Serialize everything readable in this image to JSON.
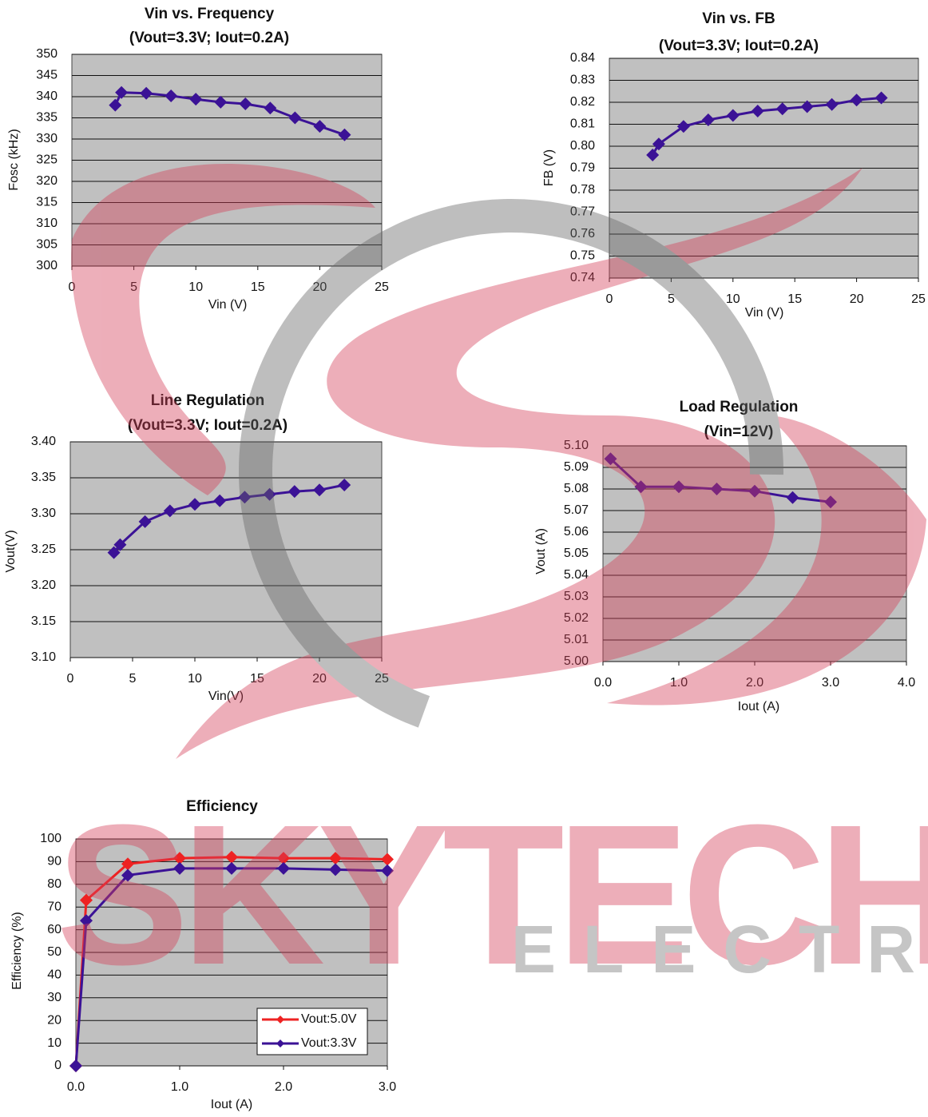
{
  "chart_data": [
    {
      "type": "line",
      "title": "Vin vs. Frequency",
      "subtitle": "(Vout=3.3V; Iout=0.2A)",
      "x_label": "Vin (V)",
      "y_label": "Fosc (kHz)",
      "x": [
        3.5,
        4,
        6,
        8,
        10,
        12,
        14,
        16,
        18,
        20,
        22
      ],
      "values": [
        338,
        341,
        340.8,
        340.2,
        339.4,
        338.7,
        338.3,
        337.3,
        335,
        333,
        331
      ],
      "color": "#3b1296",
      "xlim": [
        0,
        25
      ],
      "xticks": [
        0,
        5,
        10,
        15,
        20,
        25
      ],
      "ylim": [
        300,
        350
      ],
      "yticks": [
        300,
        305,
        310,
        315,
        320,
        325,
        330,
        335,
        340,
        345,
        350
      ],
      "grid": true
    },
    {
      "type": "line",
      "title": "Vin vs. FB",
      "subtitle": "(Vout=3.3V; Iout=0.2A)",
      "x_label": "Vin (V)",
      "y_label": "FB (V)",
      "x": [
        3.5,
        4,
        6,
        8,
        10,
        12,
        14,
        16,
        18,
        20,
        22
      ],
      "values": [
        0.796,
        0.801,
        0.809,
        0.812,
        0.814,
        0.816,
        0.817,
        0.818,
        0.819,
        0.821,
        0.822
      ],
      "color": "#3b1296",
      "xlim": [
        0,
        25
      ],
      "xticks": [
        0,
        5,
        10,
        15,
        20,
        25
      ],
      "ylim": [
        0.74,
        0.84
      ],
      "yticks": [
        0.74,
        0.75,
        0.76,
        0.77,
        0.78,
        0.79,
        {
          "value": 0.8,
          "label": "0.80"
        },
        0.81,
        0.82,
        0.83,
        0.84
      ],
      "grid": true
    },
    {
      "type": "line",
      "title": "Line Regulation",
      "subtitle": "(Vout=3.3V; Iout=0.2A)",
      "x_label": "Vin(V)",
      "y_label": "Vout(V)",
      "x": [
        3.5,
        4,
        6,
        8,
        10,
        12,
        14,
        16,
        18,
        20,
        22
      ],
      "values": [
        3.246,
        3.257,
        3.289,
        3.304,
        3.313,
        3.318,
        3.323,
        3.327,
        3.331,
        3.333,
        3.34
      ],
      "color": "#3b1296",
      "xlim": [
        0,
        25
      ],
      "xticks": [
        0,
        5,
        10,
        15,
        20,
        25
      ],
      "ylim": [
        3.1,
        3.4
      ],
      "yticks": [
        {
          "value": 3.1,
          "label": "3.10"
        },
        3.15,
        {
          "value": 3.2,
          "label": "3.20"
        },
        3.25,
        {
          "value": 3.3,
          "label": "3.30"
        },
        3.35,
        {
          "value": 3.4,
          "label": "3.40"
        }
      ],
      "grid": true
    },
    {
      "type": "line",
      "title": "Load Regulation",
      "subtitle": "(Vin=12V)",
      "x_label": "Iout (A)",
      "y_label": "Vout (A)",
      "x": [
        0.1,
        0.5,
        1.0,
        1.5,
        2.0,
        2.5,
        3.0
      ],
      "values": [
        5.094,
        5.081,
        5.081,
        5.08,
        5.079,
        5.076,
        5.074
      ],
      "color": "#3b1296",
      "xlim": [
        0,
        4
      ],
      "xticks": [
        {
          "value": 0,
          "label": "0.0"
        },
        {
          "value": 1,
          "label": "1.0"
        },
        {
          "value": 2,
          "label": "2.0"
        },
        {
          "value": 3,
          "label": "3.0"
        },
        {
          "value": 4,
          "label": "4.0"
        }
      ],
      "ylim": [
        5.0,
        5.1
      ],
      "yticks": [
        {
          "value": 5.0,
          "label": "5.00"
        },
        5.01,
        5.02,
        5.03,
        5.04,
        5.05,
        5.06,
        5.07,
        5.08,
        5.09,
        {
          "value": 5.1,
          "label": "5.10"
        }
      ],
      "grid": true
    },
    {
      "type": "line",
      "title": "Efficiency",
      "x_label": "Iout (A)",
      "y_label": "Efficiency (%)",
      "x": [
        0,
        0.1,
        0.5,
        1.0,
        1.5,
        2.0,
        2.5,
        3.0
      ],
      "series": [
        {
          "name": "Vout:5.0V",
          "color": "#ee2222",
          "values": [
            0,
            73,
            89,
            91.5,
            92,
            91.5,
            91.5,
            91
          ]
        },
        {
          "name": "Vout:3.3V",
          "color": "#3b1296",
          "values": [
            0,
            64,
            84,
            87,
            87,
            87,
            86.5,
            86
          ]
        }
      ],
      "xlim": [
        0,
        3
      ],
      "xticks": [
        {
          "value": 0,
          "label": "0.0"
        },
        {
          "value": 1,
          "label": "1.0"
        },
        {
          "value": 2,
          "label": "2.0"
        },
        {
          "value": 3,
          "label": "3.0"
        }
      ],
      "ylim": [
        0,
        100
      ],
      "yticks": [
        0,
        10,
        20,
        30,
        40,
        50,
        60,
        70,
        80,
        90,
        100
      ],
      "grid": true,
      "legend": "lower right"
    }
  ],
  "watermark": {
    "brand": "SKYTECH",
    "tagline": "ELECTRONIC"
  }
}
